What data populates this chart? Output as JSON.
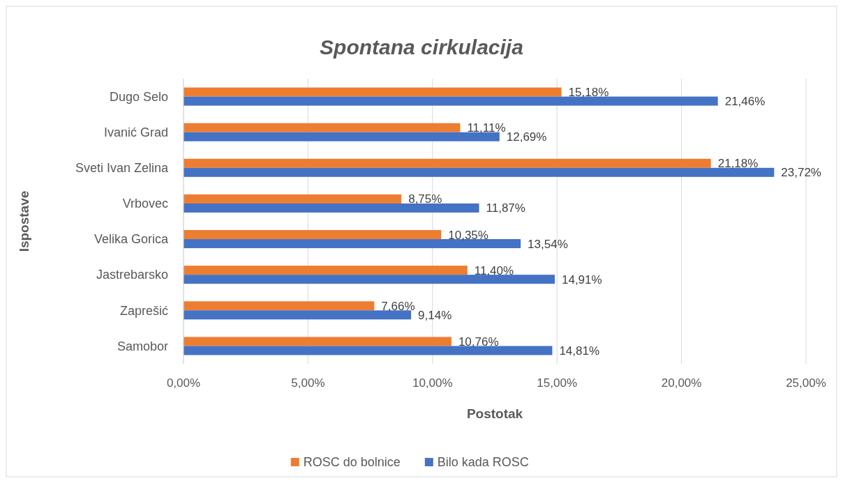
{
  "chart_data": {
    "type": "bar",
    "orientation": "horizontal",
    "title": "Spontana cirkulacija",
    "xlabel": "Postotak",
    "ylabel": "Ispostave",
    "categories": [
      "Dugo Selo",
      "Ivanić Grad",
      "Sveti Ivan Zelina",
      "Vrbovec",
      "Velika Gorica",
      "Jastrebarsko",
      "Zaprešić",
      "Samobor"
    ],
    "series": [
      {
        "name": "ROSC do bolnice",
        "color": "#ed7d31",
        "values": [
          15.18,
          11.11,
          21.18,
          8.75,
          10.35,
          11.4,
          7.66,
          10.76
        ],
        "value_labels": [
          "15,18%",
          "11,11%",
          "21,18%",
          "8,75%",
          "10,35%",
          "11,40%",
          "7,66%",
          "10,76%"
        ]
      },
      {
        "name": "Bilo kada ROSC",
        "color": "#4472c4",
        "values": [
          21.46,
          12.69,
          23.72,
          11.87,
          13.54,
          14.91,
          9.14,
          14.81
        ],
        "value_labels": [
          "21,46%",
          "12,69%",
          "23,72%",
          "11,87%",
          "13,54%",
          "14,91%",
          "9,14%",
          "14,81%"
        ]
      }
    ],
    "xlim": [
      0,
      25
    ],
    "xticks": [
      {
        "value": 0,
        "label": "0,00%"
      },
      {
        "value": 5,
        "label": "5,00%"
      },
      {
        "value": 10,
        "label": "10,00%"
      },
      {
        "value": 15,
        "label": "15,00%"
      },
      {
        "value": 20,
        "label": "20,00%"
      },
      {
        "value": 25,
        "label": "25,00%"
      }
    ],
    "grid": "x",
    "legend": "bottom"
  }
}
